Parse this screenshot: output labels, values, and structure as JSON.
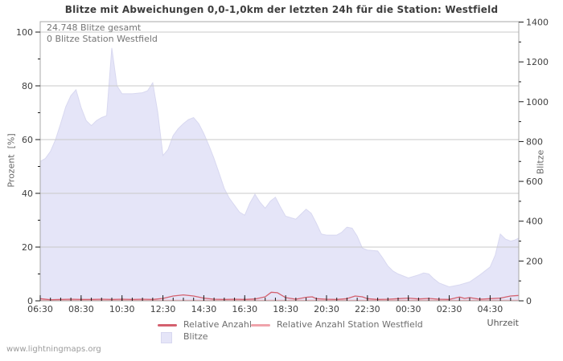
{
  "watermark": "www.lightningmaps.org",
  "chart_data": {
    "type": "area",
    "title": "Blitze mit Abweichungen 0,0-1,0km der letzten 24h für die Station: Westfield",
    "xlabel": "Uhrzeit",
    "ylabel_left": "Prozent  [%]",
    "ylabel_right": "Blitze",
    "annotations": [
      "24.748 Blitze gesamt",
      "0 Blitze Station Westfield"
    ],
    "x_axis": {
      "tick_labels": [
        "06:30",
        "08:30",
        "10:30",
        "12:30",
        "14:30",
        "16:30",
        "18:30",
        "20:30",
        "22:30",
        "00:30",
        "02:30",
        "04:30"
      ],
      "tick_hours": [
        0,
        2,
        4,
        6,
        8,
        10,
        12,
        14,
        16,
        18,
        20,
        22
      ],
      "minor_step_hours": 0.5,
      "span_hours": 23.4
    },
    "y_axis_left": {
      "label": "Prozent  [%]",
      "ticks": [
        0,
        20,
        40,
        60,
        80,
        100
      ],
      "minor_step": 10,
      "lim": [
        0,
        100
      ]
    },
    "y_axis_right": {
      "label": "Blitze",
      "ticks": [
        0,
        200,
        400,
        600,
        800,
        1000,
        1200,
        1400
      ],
      "minor_step": 100,
      "lim": [
        0,
        1400
      ]
    },
    "grid_percent": [
      20,
      40,
      60,
      80,
      100
    ],
    "colors": {
      "area_fill": "#e5e5f8",
      "area_edge": "#d8d8f0",
      "relative_line": "#d4606e",
      "station_line": "#f0a3ab",
      "grid": "#c9c9c9",
      "frame": "#a8a8a8",
      "tick": "#1a1a1a",
      "tick_label": "#3f3f3f"
    },
    "series": [
      {
        "name": "Blitze",
        "type": "area",
        "axis": "right",
        "x_hours": [
          0,
          0.25,
          0.5,
          0.75,
          1,
          1.25,
          1.5,
          1.75,
          2,
          2.25,
          2.5,
          2.75,
          3,
          3.25,
          3.5,
          3.75,
          4,
          4.5,
          5,
          5.25,
          5.5,
          5.75,
          6,
          6.25,
          6.5,
          6.75,
          7,
          7.25,
          7.5,
          7.75,
          8,
          8.25,
          8.5,
          8.75,
          9,
          9.25,
          9.5,
          9.75,
          10,
          10.25,
          10.5,
          10.75,
          11,
          11.25,
          11.5,
          11.75,
          12,
          12.5,
          12.75,
          13,
          13.25,
          13.5,
          13.75,
          14,
          14.5,
          14.75,
          15,
          15.25,
          15.5,
          15.75,
          16,
          16.5,
          16.75,
          17,
          17.25,
          17.5,
          18,
          18.5,
          18.75,
          19,
          19.25,
          19.5,
          20,
          20.25,
          20.5,
          21,
          21.5,
          21.75,
          22,
          22.25,
          22.5,
          22.75,
          23,
          23.2,
          23.4
        ],
        "times": [
          "06:30",
          "06:45",
          "07:00",
          "07:15",
          "07:30",
          "07:45",
          "08:00",
          "08:15",
          "08:30",
          "08:45",
          "09:00",
          "09:15",
          "09:30",
          "09:45",
          "10:00",
          "10:15",
          "10:30",
          "11:00",
          "11:30",
          "11:45",
          "12:00",
          "12:15",
          "12:30",
          "12:45",
          "13:00",
          "13:15",
          "13:30",
          "13:45",
          "14:00",
          "14:15",
          "14:30",
          "14:45",
          "15:00",
          "15:15",
          "15:30",
          "15:45",
          "16:00",
          "16:15",
          "16:30",
          "16:45",
          "17:00",
          "17:15",
          "17:30",
          "17:45",
          "18:00",
          "18:15",
          "18:30",
          "19:00",
          "19:15",
          "19:30",
          "19:45",
          "20:00",
          "20:15",
          "20:30",
          "21:00",
          "21:15",
          "21:30",
          "21:45",
          "22:00",
          "22:15",
          "22:30",
          "23:00",
          "23:15",
          "23:30",
          "23:45",
          "00:00",
          "00:30",
          "01:00",
          "01:15",
          "01:30",
          "01:45",
          "02:00",
          "02:30",
          "02:45",
          "03:00",
          "03:30",
          "04:00",
          "04:15",
          "04:30",
          "04:45",
          "05:00",
          "05:15",
          "05:30",
          "05:42",
          "05:55"
        ],
        "values": [
          700,
          715,
          750,
          810,
          890,
          975,
          1030,
          1060,
          970,
          905,
          880,
          905,
          920,
          930,
          1270,
          1080,
          1040,
          1040,
          1045,
          1055,
          1095,
          945,
          730,
          760,
          830,
          865,
          890,
          910,
          920,
          890,
          840,
          780,
          715,
          640,
          565,
          515,
          480,
          445,
          430,
          490,
          535,
          495,
          465,
          500,
          520,
          470,
          425,
          410,
          435,
          460,
          440,
          390,
          335,
          330,
          330,
          345,
          370,
          365,
          325,
          265,
          255,
          250,
          215,
          175,
          150,
          135,
          115,
          130,
          140,
          135,
          110,
          90,
          70,
          75,
          80,
          95,
          130,
          150,
          170,
          230,
          335,
          310,
          300,
          305,
          315
        ]
      },
      {
        "name": "Relative Anzahl",
        "type": "line",
        "axis": "left",
        "x_hours": [
          0,
          0.5,
          1,
          1.5,
          2,
          2.5,
          3,
          3.5,
          4,
          4.5,
          5,
          5.5,
          6,
          6.5,
          7,
          7.5,
          8,
          8.5,
          9,
          9.5,
          10,
          10.5,
          11,
          11.3,
          11.6,
          12,
          12.5,
          13,
          13.3,
          13.5,
          14,
          14.5,
          15,
          15.4,
          15.75,
          16,
          16.5,
          17,
          17.5,
          18,
          18.5,
          19,
          19.5,
          20,
          20.5,
          20.75,
          21,
          21.5,
          22,
          22.5,
          23,
          23.4
        ],
        "times": [
          "06:30",
          "07:00",
          "07:30",
          "08:00",
          "08:30",
          "09:00",
          "09:30",
          "10:00",
          "10:30",
          "11:00",
          "11:30",
          "12:00",
          "12:30",
          "13:00",
          "13:30",
          "14:00",
          "14:30",
          "15:00",
          "15:30",
          "16:00",
          "16:30",
          "17:00",
          "17:30",
          "17:48",
          "18:06",
          "18:30",
          "19:00",
          "19:30",
          "19:48",
          "20:00",
          "20:30",
          "21:00",
          "21:30",
          "21:54",
          "22:15",
          "22:30",
          "23:00",
          "23:30",
          "00:00",
          "00:30",
          "01:00",
          "01:30",
          "02:00",
          "02:30",
          "03:00",
          "03:15",
          "03:30",
          "04:00",
          "04:30",
          "05:00",
          "05:30",
          "05:55"
        ],
        "values": [
          0.8,
          0.4,
          0.5,
          0.6,
          0.5,
          0.5,
          0.6,
          0.5,
          0.6,
          0.5,
          0.6,
          0.5,
          0.9,
          1.8,
          2.2,
          1.8,
          1.0,
          0.6,
          0.5,
          0.6,
          0.5,
          0.7,
          1.5,
          3.2,
          3.0,
          1.2,
          0.6,
          1.3,
          1.5,
          0.8,
          0.6,
          0.5,
          0.8,
          1.8,
          1.5,
          0.8,
          0.5,
          0.6,
          0.8,
          1.0,
          0.7,
          0.9,
          0.6,
          0.5,
          1.4,
          0.9,
          1.2,
          0.6,
          0.8,
          1.0,
          1.8,
          2.0
        ]
      },
      {
        "name": "Relative Anzahl Station Westfield",
        "type": "line",
        "axis": "left",
        "constant_value": 0
      }
    ],
    "legend": {
      "items": [
        {
          "label": "Relative Anzahl",
          "swatch": "line",
          "color": "#d4606e"
        },
        {
          "label": "Relative Anzahl Station Westfield",
          "swatch": "line",
          "color": "#f0a3ab"
        },
        {
          "label": "Blitze",
          "swatch": "square",
          "color": "#e5e5f8"
        }
      ]
    }
  }
}
